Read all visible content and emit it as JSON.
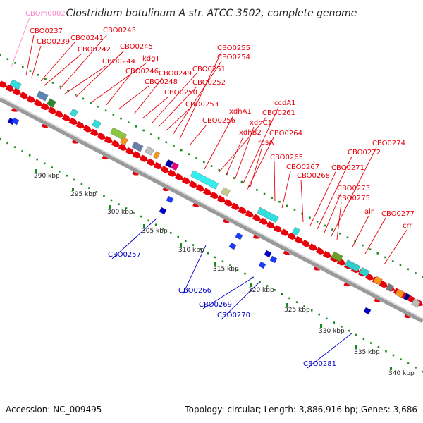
{
  "title": "Clostridium botulinum A str. ATCC 3502, complete genome",
  "colors": {
    "forward_label": "#e8000b",
    "reverse_label": "#0000c8",
    "rna_label": "#ff88cc",
    "ruler_dot": "#1a8c1a",
    "backbone": "#888888"
  },
  "forward_genes": [
    "CBO0237",
    "CBO0239",
    "CBO0241",
    "CBO0242",
    "CBO0243",
    "CBO0244",
    "CBO0245",
    "kdgT",
    "CBO0246",
    "CBO0248",
    "CBO0249",
    "CBO0250",
    "CBO0251",
    "CBO0252",
    "CBO0253",
    "CBO0254",
    "CBO0255",
    "CBO0256",
    "xdhA1",
    "CBO0261",
    "xdhB2",
    "xdhC1",
    "ccdA1",
    "resA",
    "CBO0264",
    "CBO0265",
    "CBO0267",
    "CBO0268",
    "CBO0271",
    "CBO0272",
    "CBO0273",
    "CBO0274",
    "CBO0275",
    "alr",
    "CBO0277",
    "crr"
  ],
  "reverse_genes": [
    "CBO0257",
    "CBO0266",
    "CBO0269",
    "CBO0270",
    "CBO0281"
  ],
  "rna_genes": [
    "CBOm0002"
  ],
  "ruler_ticks": [
    "290 kbp",
    "295 kbp",
    "300 kbp",
    "305 kbp",
    "310 kbp",
    "315 kbp",
    "320 kbp",
    "325 kbp",
    "330 kbp",
    "335 kbp",
    "340 kbp"
  ],
  "footer": {
    "accession": "Accession: NC_009495",
    "summary": "Topology: circular; Length: 3,886,916 bp; Genes: 3,686"
  }
}
